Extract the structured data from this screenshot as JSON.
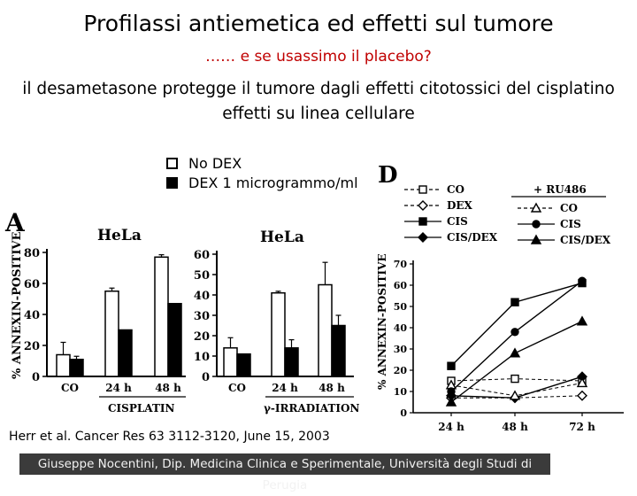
{
  "slide": {
    "title": "Profilassi antiemetica ed effetti sul tumore",
    "subtitle": "…… e se usassimo il placebo?",
    "description_line1": "il desametasone protegge il tumore dagli effetti citotossici del cisplatino",
    "description_line2": "effetti su linea cellulare",
    "legend": {
      "open_label": "No DEX",
      "filled_label": "DEX 1 microgrammo/ml"
    },
    "citation": "Herr et al. Cancer Res 63 3112-3120, June 15, 2003",
    "footer": "Giuseppe Nocentini, Dip. Medicina Clinica e Sperimentale, Università degli Studi di Perugia",
    "colors": {
      "subtitle": "#c00000",
      "footer_bg": "#3b3b3b",
      "footer_text": "#f2f2f2"
    }
  },
  "chart_data": [
    {
      "type": "bar",
      "panel": "A",
      "title": "HeLa",
      "ylabel": "% ANNEXIN-POSITIVE",
      "xlabel": "CISPLATIN",
      "ylim": [
        0,
        80
      ],
      "yticks": [
        0,
        20,
        40,
        60,
        80
      ],
      "categories": [
        "CO",
        "24 h",
        "48 h"
      ],
      "series": [
        {
          "fill": "open",
          "values": [
            14,
            55,
            77
          ],
          "errors": [
            8,
            2,
            1.5
          ]
        },
        {
          "fill": "filled",
          "values": [
            11,
            30,
            47
          ],
          "errors": [
            2,
            0,
            0
          ]
        }
      ]
    },
    {
      "type": "bar",
      "title": "HeLa",
      "xlabel": "γ-IRRADIATION",
      "ylim": [
        0,
        60
      ],
      "yticks": [
        0,
        10,
        20,
        30,
        40,
        50,
        60
      ],
      "categories": [
        "CO",
        "24 h",
        "48 h"
      ],
      "series": [
        {
          "fill": "open",
          "values": [
            14,
            41,
            45
          ],
          "errors": [
            5,
            0.8,
            11
          ]
        },
        {
          "fill": "filled",
          "values": [
            11,
            14,
            25
          ],
          "errors": [
            0,
            4,
            5
          ]
        }
      ]
    },
    {
      "type": "line",
      "panel": "D",
      "ylabel": "% ANNEXIN-POSITIVE",
      "ylim": [
        0,
        70
      ],
      "yticks": [
        0,
        10,
        20,
        30,
        40,
        50,
        60,
        70
      ],
      "x": [
        "24 h",
        "48 h",
        "72 h"
      ],
      "legend_group_label": "+ RU486",
      "series": [
        {
          "name": "CO",
          "marker": "open-square",
          "dash": true,
          "values": [
            15,
            16,
            15
          ]
        },
        {
          "name": "DEX",
          "marker": "open-diamond",
          "dash": true,
          "values": [
            7,
            7,
            8
          ]
        },
        {
          "name": "CIS",
          "marker": "filled-square",
          "dash": false,
          "values": [
            22,
            52,
            61
          ]
        },
        {
          "name": "CIS/DEX",
          "marker": "filled-diamond",
          "dash": false,
          "values": [
            8,
            7,
            17
          ]
        },
        {
          "name": "CO",
          "marker": "open-triangle",
          "dash": true,
          "values": [
            13,
            8,
            14
          ]
        },
        {
          "name": "CIS",
          "marker": "filled-circle",
          "dash": false,
          "values": [
            10,
            38,
            62
          ]
        },
        {
          "name": "CIS/DEX",
          "marker": "filled-triangle",
          "dash": false,
          "values": [
            5,
            28,
            43
          ]
        }
      ]
    }
  ]
}
